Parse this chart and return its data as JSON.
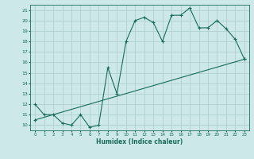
{
  "title": "",
  "xlabel": "Humidex (Indice chaleur)",
  "bg_color": "#cce8e8",
  "grid_color": "#aacccc",
  "line_color": "#1a6b5a",
  "xlim": [
    -0.5,
    23.5
  ],
  "ylim": [
    9.5,
    21.5
  ],
  "xticks": [
    0,
    1,
    2,
    3,
    4,
    5,
    6,
    7,
    8,
    9,
    10,
    11,
    12,
    13,
    14,
    15,
    16,
    17,
    18,
    19,
    20,
    21,
    22,
    23
  ],
  "yticks": [
    10,
    11,
    12,
    13,
    14,
    15,
    16,
    17,
    18,
    19,
    20,
    21
  ],
  "curve1_x": [
    0,
    1,
    2,
    3,
    4,
    5,
    6,
    7,
    8,
    9,
    10,
    11,
    12,
    13,
    14,
    15,
    16,
    17,
    18,
    19,
    20,
    21,
    22,
    23
  ],
  "curve1_y": [
    12,
    11,
    11,
    10.2,
    10,
    11,
    9.8,
    10,
    15.5,
    13,
    18,
    20,
    20.3,
    19.8,
    18,
    20.5,
    20.5,
    21.2,
    19.3,
    19.3,
    20,
    19.2,
    18.2,
    16.3
  ],
  "curve2_x": [
    0,
    23
  ],
  "curve2_y": [
    10.5,
    16.3
  ]
}
